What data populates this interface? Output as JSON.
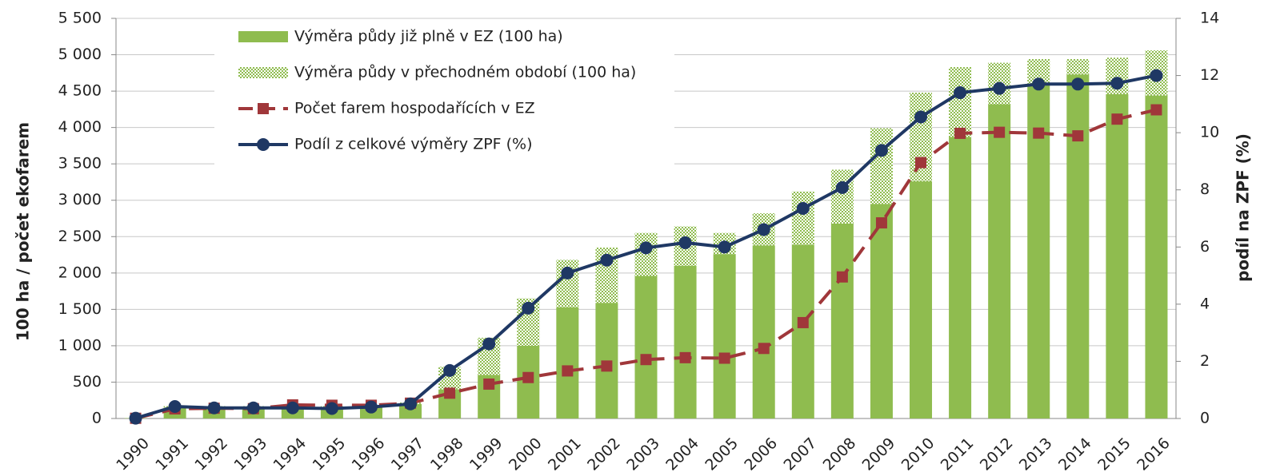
{
  "chart_data": {
    "type": "bar",
    "categories": [
      "1990",
      "1991",
      "1992",
      "1993",
      "1994",
      "1995",
      "1996",
      "1997",
      "1998",
      "1999",
      "2000",
      "2001",
      "2002",
      "2003",
      "2004",
      "2005",
      "2006",
      "2007",
      "2008",
      "2009",
      "2010",
      "2011",
      "2012",
      "2013",
      "2014",
      "2015",
      "2016"
    ],
    "series": [
      {
        "name": "Výměra půdy již plně v EZ (100 ha)",
        "type": "bar",
        "color": "#8fbc4f",
        "values": [
          5,
          150,
          150,
          150,
          150,
          150,
          160,
          200,
          400,
          600,
          1000,
          1530,
          1590,
          1960,
          2100,
          2260,
          2380,
          2390,
          2680,
          2950,
          3260,
          3870,
          4320,
          4580,
          4730,
          4460,
          4440
        ]
      },
      {
        "name": "Výměra půdy v přechodném období (100 ha)",
        "type": "bar",
        "pattern": "dotted",
        "color": "#8fbc4f",
        "values": [
          0,
          20,
          20,
          20,
          20,
          20,
          20,
          20,
          310,
          510,
          650,
          650,
          760,
          590,
          540,
          290,
          440,
          730,
          740,
          1040,
          1220,
          960,
          570,
          360,
          210,
          500,
          620
        ]
      },
      {
        "name": "Počet farem hospodařících v EZ",
        "type": "line",
        "dashed": true,
        "marker": "square",
        "color": "#a0373a",
        "values": [
          3,
          132,
          141,
          135,
          187,
          182,
          182,
          211,
          348,
          473,
          563,
          654,
          721,
          810,
          836,
          829,
          963,
          1318,
          1946,
          2689,
          3517,
          3920,
          3934,
          3923,
          3885,
          4115,
          4243
        ]
      },
      {
        "name": "Podíl z celkové výměry ZPF (%)",
        "type": "line",
        "marker": "circle",
        "axis": "y2",
        "color": "#1f3864",
        "values": [
          0.01,
          0.42,
          0.37,
          0.37,
          0.37,
          0.35,
          0.4,
          0.51,
          1.68,
          2.61,
          3.86,
          5.09,
          5.54,
          5.97,
          6.15,
          6.0,
          6.61,
          7.35,
          8.08,
          9.38,
          10.55,
          11.4,
          11.55,
          11.7,
          11.7,
          11.73,
          12.0
        ]
      }
    ],
    "ylabel": "100 ha / počet ekofarem",
    "y2label": "podíl na ZPF (%)",
    "ylim": [
      0,
      5500
    ],
    "yticks": [
      0,
      500,
      {
        "value": 1000,
        "label": "1 000"
      },
      {
        "value": 1500,
        "label": "1 500"
      },
      {
        "value": 2000,
        "label": "2 000"
      },
      {
        "value": 2500,
        "label": "2 500"
      },
      {
        "value": 3000,
        "label": "3 000"
      },
      {
        "value": 3500,
        "label": "3 500"
      },
      {
        "value": 4000,
        "label": "4 000"
      },
      {
        "value": 4500,
        "label": "4 500"
      },
      {
        "value": 5000,
        "label": "5 000"
      },
      {
        "value": 5500,
        "label": "5 500"
      }
    ],
    "y2lim": [
      0,
      14
    ],
    "y2ticks": [
      0,
      2,
      4,
      6,
      8,
      10,
      12,
      14
    ],
    "grid": true,
    "legend": "upper left"
  }
}
